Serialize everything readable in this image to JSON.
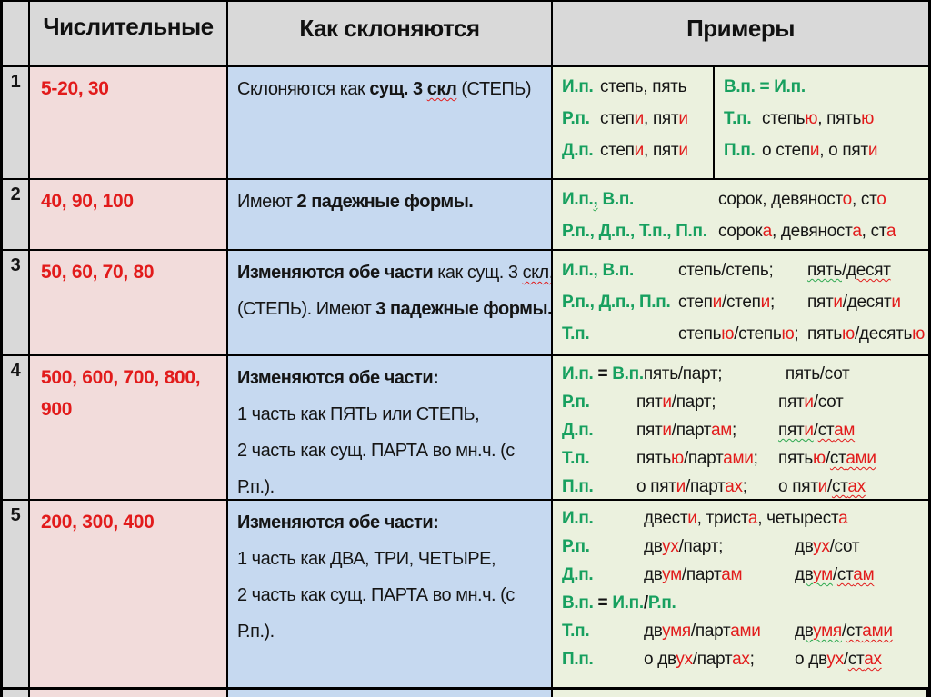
{
  "colors": {
    "header_bg": "#d9d9d9",
    "numerals_bg": "#f2dcdb",
    "method_bg": "#c6d9f0",
    "examples_bg": "#ebf1de",
    "red_text": "#e21b1b",
    "green_case_label": "#17a05f",
    "border": "#000000"
  },
  "header": {
    "num": "",
    "numerals": "Числительные",
    "method": "Как склоняются",
    "examples": "Примеры"
  },
  "rows": [
    {
      "num": "1",
      "numerals": "5-20, 30",
      "method": [
        [
          [
            {
              "t": "Склоняются  как ",
              "s": "k"
            },
            {
              "t": "сущ. 3 ",
              "s": "b"
            },
            {
              "t": "скл",
              "s": "b sqr"
            },
            {
              "t": " (СТЕПЬ)",
              "s": "k"
            }
          ]
        ]
      ],
      "examples_left": [
        [
          [
            {
              "t": "И.п.",
              "s": "g"
            }
          ],
          [
            {
              "t": "степь, пять",
              "s": "k"
            }
          ]
        ],
        [
          [
            {
              "t": "Р.п.",
              "s": "g"
            }
          ],
          [
            {
              "t": "степ",
              "s": "k"
            },
            {
              "t": "и",
              "s": "r"
            },
            {
              "t": ", пят",
              "s": "k"
            },
            {
              "t": "и",
              "s": "r"
            }
          ]
        ],
        [
          [
            {
              "t": "Д.п.",
              "s": "g"
            }
          ],
          [
            {
              "t": "степ",
              "s": "k"
            },
            {
              "t": "и",
              "s": "r"
            },
            {
              "t": ", пят",
              "s": "k"
            },
            {
              "t": "и",
              "s": "r"
            }
          ]
        ]
      ],
      "examples_right": [
        [
          [
            {
              "t": "В.п. = И.п.",
              "s": "g"
            }
          ]
        ],
        [
          [
            {
              "t": "Т.п.",
              "s": "g"
            }
          ],
          [
            {
              "t": "степь",
              "s": "k"
            },
            {
              "t": "ю",
              "s": "r"
            },
            {
              "t": ", пять",
              "s": "k"
            },
            {
              "t": "ю",
              "s": "r"
            }
          ]
        ],
        [
          [
            {
              "t": "П.п.",
              "s": "g"
            }
          ],
          [
            {
              "t": "о степ",
              "s": "k"
            },
            {
              "t": "и",
              "s": "r"
            },
            {
              "t": ", о пят",
              "s": "k"
            },
            {
              "t": "и",
              "s": "r"
            }
          ]
        ]
      ]
    },
    {
      "num": "2",
      "numerals": "40, 90, 100",
      "method": [
        [
          [
            {
              "t": "Имеют ",
              "s": "k"
            },
            {
              "t": "2 падежные формы.",
              "s": "b"
            }
          ]
        ]
      ],
      "examples": [
        [
          [
            {
              "t": "И.п.",
              "s": "g"
            },
            {
              "t": ",",
              "s": "g sqg"
            },
            {
              "t": " В.п.",
              "s": "g"
            }
          ],
          [
            {
              "t": "сорок,  девяност",
              "s": "k"
            },
            {
              "t": "о",
              "s": "r"
            },
            {
              "t": ", ст",
              "s": "k"
            },
            {
              "t": "о",
              "s": "r"
            }
          ]
        ],
        [
          [
            {
              "t": "Р.п., Д.п., Т.п., П.п.",
              "s": "g"
            }
          ],
          [
            {
              "t": "сорок",
              "s": "k"
            },
            {
              "t": "а",
              "s": "r"
            },
            {
              "t": ", девяност",
              "s": "k"
            },
            {
              "t": "а",
              "s": "r"
            },
            {
              "t": ", ст",
              "s": "k"
            },
            {
              "t": "а",
              "s": "r"
            }
          ]
        ]
      ]
    },
    {
      "num": "3",
      "numerals": "50, 60, 70, 80",
      "method": [
        [
          [
            {
              "t": "Изменяются обе части ",
              "s": "b"
            },
            {
              "t": "как сущ. 3 ",
              "s": "k"
            },
            {
              "t": "скл.",
              "s": "k sqr"
            }
          ]
        ],
        [
          [
            {
              "t": "(СТЕПЬ).  Имеют ",
              "s": "k"
            },
            {
              "t": "3 падежные формы.",
              "s": "b"
            }
          ]
        ]
      ],
      "examples": [
        [
          [
            {
              "t": "И.п., В.п.",
              "s": "g"
            }
          ],
          [
            {
              "t": "степь/степь;",
              "s": "k"
            }
          ],
          [
            {
              "t": "пять",
              "s": "k sqg"
            },
            {
              "t": "/",
              "s": "k"
            },
            {
              "t": "десят",
              "s": "k sqr"
            }
          ]
        ],
        [
          [
            {
              "t": "Р.п.,  Д.п., П.п.",
              "s": "g"
            }
          ],
          [
            {
              "t": "степ",
              "s": "k"
            },
            {
              "t": "и",
              "s": "r"
            },
            {
              "t": "/степ",
              "s": "k"
            },
            {
              "t": "и",
              "s": "r"
            },
            {
              "t": ";",
              "s": "k"
            }
          ],
          [
            {
              "t": "пят",
              "s": "k"
            },
            {
              "t": "и",
              "s": "r"
            },
            {
              "t": "/десят",
              "s": "k"
            },
            {
              "t": "и",
              "s": "r"
            }
          ]
        ],
        [
          [
            {
              "t": "Т.п.",
              "s": "g"
            }
          ],
          [
            {
              "t": "степь",
              "s": "k"
            },
            {
              "t": "ю",
              "s": "r"
            },
            {
              "t": "/степь",
              "s": "k"
            },
            {
              "t": "ю",
              "s": "r"
            },
            {
              "t": ";",
              "s": "k"
            }
          ],
          [
            {
              "t": "пять",
              "s": "k"
            },
            {
              "t": "ю",
              "s": "r"
            },
            {
              "t": "/десять",
              "s": "k"
            },
            {
              "t": "ю",
              "s": "r"
            }
          ]
        ]
      ]
    },
    {
      "num": "4",
      "numerals": "500, 600, 700, 800,\n900",
      "method": [
        [
          [
            {
              "t": "Изменяются обе части:",
              "s": "b"
            }
          ]
        ],
        [
          [
            {
              "t": "1 часть как ПЯТЬ или СТЕПЬ,",
              "s": "k"
            }
          ]
        ],
        [
          [
            {
              "t": "2 часть как сущ. ПАРТА  во мн.ч. (с",
              "s": "k"
            }
          ]
        ],
        [
          [
            {
              "t": "Р.п.).",
              "s": "k"
            }
          ]
        ]
      ],
      "examples": [
        [
          [
            {
              "t": "И.п. ",
              "s": "g"
            },
            {
              "t": "= ",
              "s": "b"
            },
            {
              "t": "В.п.",
              "s": "g"
            }
          ],
          [
            {
              "t": "пять/парт;",
              "s": "k"
            }
          ],
          [
            {
              "t": "пять/сот",
              "s": "k"
            }
          ]
        ],
        [
          [
            {
              "t": "Р.п.",
              "s": "g"
            }
          ],
          [
            {
              "t": "пят",
              "s": "k"
            },
            {
              "t": "и",
              "s": "r"
            },
            {
              "t": "/парт;",
              "s": "k"
            }
          ],
          [
            {
              "t": "пят",
              "s": "k"
            },
            {
              "t": "и",
              "s": "r"
            },
            {
              "t": "/сот",
              "s": "k"
            }
          ]
        ],
        [
          [
            {
              "t": "Д.п.",
              "s": "g"
            }
          ],
          [
            {
              "t": "пят",
              "s": "k"
            },
            {
              "t": "и",
              "s": "r"
            },
            {
              "t": "/парт",
              "s": "k"
            },
            {
              "t": "ам",
              "s": "r"
            },
            {
              "t": ";",
              "s": "k"
            }
          ],
          [
            {
              "t": "пят",
              "s": "k sqg"
            },
            {
              "t": "и",
              "s": "r sqg"
            },
            {
              "t": "/",
              "s": "k"
            },
            {
              "t": "ст",
              "s": "k sqr"
            },
            {
              "t": "ам",
              "s": "r sqr"
            }
          ]
        ],
        [
          [
            {
              "t": "Т.п.",
              "s": "g"
            }
          ],
          [
            {
              "t": "пять",
              "s": "k"
            },
            {
              "t": "ю",
              "s": "r"
            },
            {
              "t": "/парт",
              "s": "k"
            },
            {
              "t": "ами",
              "s": "r"
            },
            {
              "t": ";",
              "s": "k"
            }
          ],
          [
            {
              "t": "пять",
              "s": "k"
            },
            {
              "t": "ю",
              "s": "r"
            },
            {
              "t": "/",
              "s": "k"
            },
            {
              "t": "ст",
              "s": "k sqr"
            },
            {
              "t": "ами",
              "s": "r sqr"
            }
          ]
        ],
        [
          [
            {
              "t": "П.п.",
              "s": "g"
            }
          ],
          [
            {
              "t": "о пят",
              "s": "k"
            },
            {
              "t": "и",
              "s": "r"
            },
            {
              "t": "/парт",
              "s": "k"
            },
            {
              "t": "ах",
              "s": "r"
            },
            {
              "t": ";",
              "s": "k"
            }
          ],
          [
            {
              "t": "о пят",
              "s": "k"
            },
            {
              "t": "и",
              "s": "r"
            },
            {
              "t": "/",
              "s": "k"
            },
            {
              "t": "ст",
              "s": "k sqr"
            },
            {
              "t": "ах",
              "s": "r sqr"
            }
          ]
        ]
      ]
    },
    {
      "num": "5",
      "numerals": "200, 300, 400",
      "method": [
        [
          [
            {
              "t": "Изменяются обе части:",
              "s": "b"
            }
          ]
        ],
        [
          [
            {
              "t": "1 часть как ДВА, ТРИ, ЧЕТЫРЕ,",
              "s": "k"
            }
          ]
        ],
        [
          [
            {
              "t": "2 часть как сущ. ПАРТА  во мн.ч. (с",
              "s": "k"
            }
          ]
        ],
        [
          [
            {
              "t": "Р.п.).",
              "s": "k"
            }
          ]
        ]
      ],
      "examples": [
        [
          [
            {
              "t": "И.п.",
              "s": "g"
            }
          ],
          [
            {
              "t": "двест",
              "s": "k"
            },
            {
              "t": "и",
              "s": "r"
            },
            {
              "t": ", трист",
              "s": "k"
            },
            {
              "t": "а",
              "s": "r"
            },
            {
              "t": ", четырест",
              "s": "k"
            },
            {
              "t": "а",
              "s": "r"
            }
          ]
        ],
        [
          [
            {
              "t": "Р.п.",
              "s": "g"
            }
          ],
          [
            {
              "t": "дв",
              "s": "k"
            },
            {
              "t": "ух",
              "s": "r"
            },
            {
              "t": "/парт;",
              "s": "k"
            }
          ],
          [
            {
              "t": "дв",
              "s": "k"
            },
            {
              "t": "ух",
              "s": "r"
            },
            {
              "t": "/сот",
              "s": "k"
            }
          ]
        ],
        [
          [
            {
              "t": "Д.п.",
              "s": "g"
            }
          ],
          [
            {
              "t": "дв",
              "s": "k"
            },
            {
              "t": "ум",
              "s": "r"
            },
            {
              "t": "/парт",
              "s": "k"
            },
            {
              "t": "ам",
              "s": "r"
            }
          ],
          [
            {
              "t": "дв",
              "s": "k sqg"
            },
            {
              "t": "ум",
              "s": "r sqg"
            },
            {
              "t": "/",
              "s": "k"
            },
            {
              "t": "ст",
              "s": "k sqr"
            },
            {
              "t": "ам",
              "s": "r sqr"
            }
          ]
        ],
        [
          [
            {
              "t": "В.п. ",
              "s": "g"
            },
            {
              "t": "= ",
              "s": "b"
            },
            {
              "t": "И.п.",
              "s": "g"
            },
            {
              "t": "/",
              "s": "b"
            },
            {
              "t": "Р.п.",
              "s": "g"
            }
          ]
        ],
        [
          [
            {
              "t": "Т.п.",
              "s": "g"
            }
          ],
          [
            {
              "t": "дв",
              "s": "k"
            },
            {
              "t": "умя",
              "s": "r"
            },
            {
              "t": "/парт",
              "s": "k"
            },
            {
              "t": "ами",
              "s": "r"
            }
          ],
          [
            {
              "t": "дв",
              "s": "k sqg"
            },
            {
              "t": "умя",
              "s": "r sqg"
            },
            {
              "t": "/",
              "s": "k"
            },
            {
              "t": "ст",
              "s": "k sqr"
            },
            {
              "t": "ами",
              "s": "r sqr"
            }
          ]
        ],
        [
          [
            {
              "t": "П.п.",
              "s": "g"
            }
          ],
          [
            {
              "t": "о дв",
              "s": "k"
            },
            {
              "t": "ух",
              "s": "r"
            },
            {
              "t": "/парт",
              "s": "k"
            },
            {
              "t": "ах",
              "s": "r"
            },
            {
              "t": ";",
              "s": "k"
            }
          ],
          [
            {
              "t": "о  дв",
              "s": "k"
            },
            {
              "t": "ух",
              "s": "r"
            },
            {
              "t": "/",
              "s": "k"
            },
            {
              "t": "ст",
              "s": "k sqr"
            },
            {
              "t": "ах",
              "s": "r sqr"
            }
          ]
        ]
      ]
    }
  ]
}
